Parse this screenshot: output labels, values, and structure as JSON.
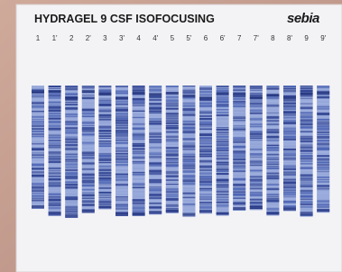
{
  "header": {
    "title": "HYDRAGEL 9 CSF ISOFOCUSING",
    "brand": "sebia"
  },
  "lanes": [
    "1",
    "1'",
    "2",
    "2'",
    "3",
    "3'",
    "4",
    "4'",
    "5",
    "5'",
    "6",
    "6'",
    "7",
    "7'",
    "8",
    "8'",
    "9",
    "9'"
  ]
}
